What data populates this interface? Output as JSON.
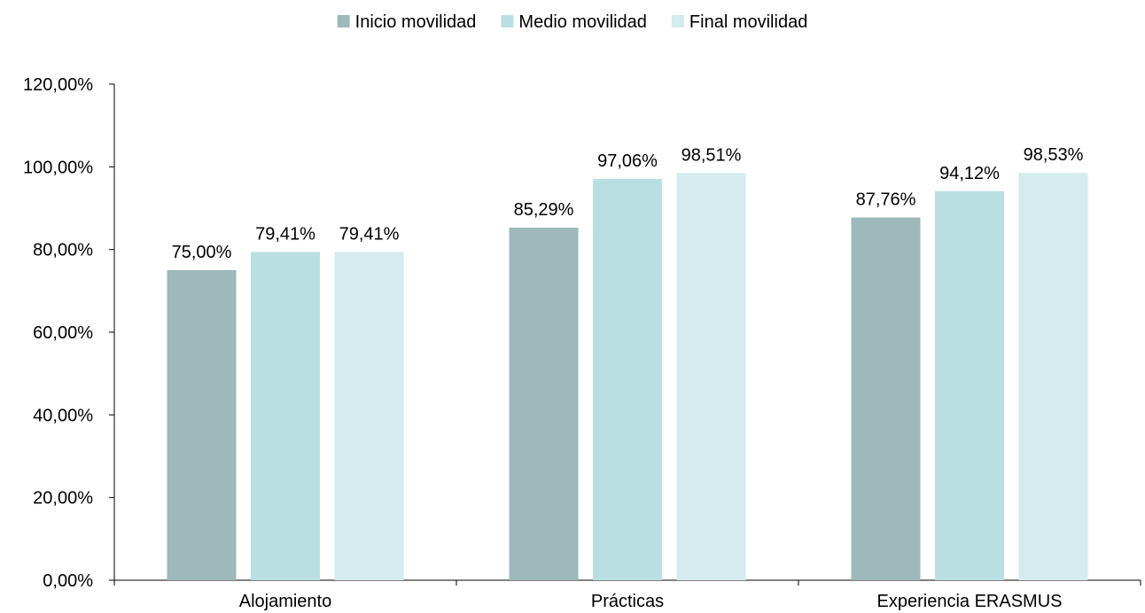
{
  "chart_data": {
    "type": "bar",
    "title": "",
    "xlabel": "",
    "ylabel": "",
    "categories": [
      "Alojamiento",
      "Prácticas",
      "Experiencia ERASMUS"
    ],
    "series": [
      {
        "name": "Inicio movilidad",
        "color": "#9db9ba",
        "values": [
          75.0,
          85.29,
          87.76
        ],
        "labels": [
          "75,00%",
          "85,29%",
          "87,76%"
        ]
      },
      {
        "name": "Medio movilidad",
        "color": "#b9dfe2",
        "values": [
          79.41,
          97.06,
          94.12
        ],
        "labels": [
          "79,41%",
          "97,06%",
          "94,12%"
        ]
      },
      {
        "name": "Final movilidad",
        "color": "#d5ebee",
        "values": [
          79.41,
          98.51,
          98.53
        ],
        "labels": [
          "79,41%",
          "98,51%",
          "98,53%"
        ]
      }
    ],
    "ylim": [
      0,
      120
    ],
    "yticks": [
      0,
      20,
      40,
      60,
      80,
      100,
      120
    ],
    "ytick_labels": [
      "0,00%",
      "20,00%",
      "40,00%",
      "60,00%",
      "80,00%",
      "100,00%",
      "120,00%"
    ],
    "grid": false,
    "legend_position": "top-center"
  }
}
